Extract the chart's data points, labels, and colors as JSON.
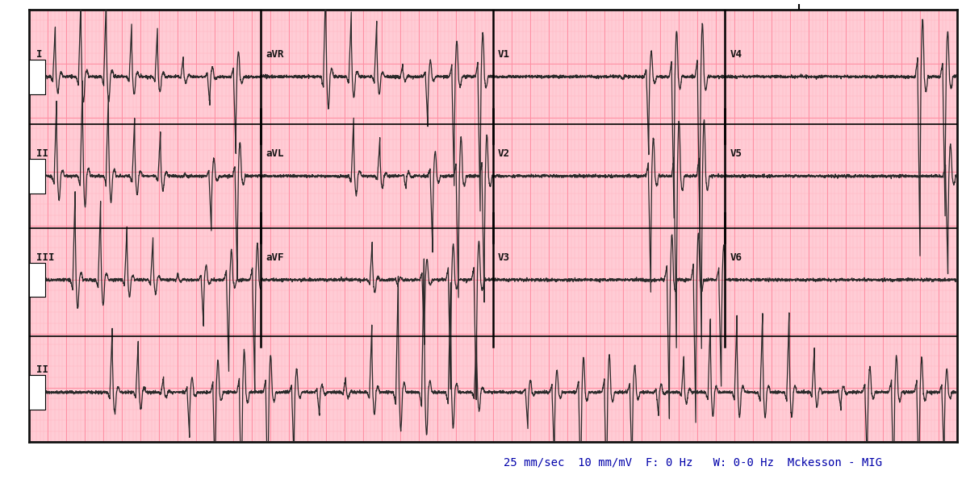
{
  "bg_white": "#FFFFFF",
  "paper_color": "#FFCCD5",
  "grid_minor_color": "#FFB3C1",
  "grid_major_color": "#FF8FA3",
  "border_color": "#111111",
  "trace_color": "#2a2a2a",
  "label_color": "#111111",
  "footer_text": "25 mm/sec  10 mm/mV  F: 0 Hz   W: 0-0 Hz  Mckesson - MIG",
  "footer_color": "#0000AA",
  "row_labels": [
    "I",
    "II",
    "III",
    "II"
  ],
  "col_labels_row1": [
    "aVR",
    "V1",
    "V4"
  ],
  "col_labels_row2": [
    "aVL",
    "V2",
    "V5"
  ],
  "col_labels_row3": [
    "aVF",
    "V3",
    "V6"
  ],
  "footer_fontsize": 10,
  "label_fontsize": 9
}
